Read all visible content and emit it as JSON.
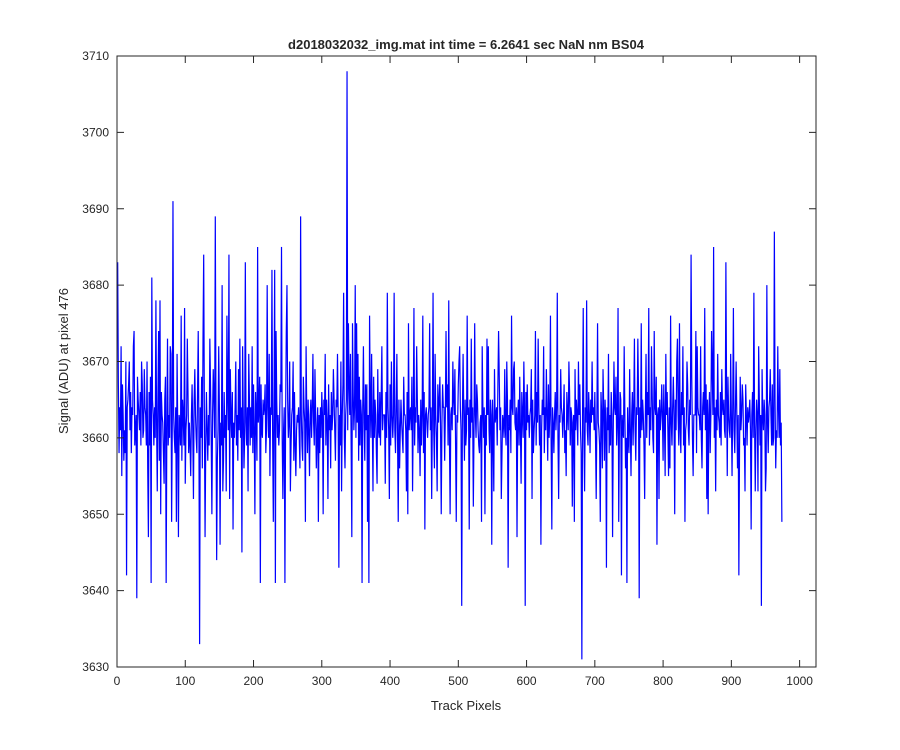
{
  "chart_data": {
    "type": "line",
    "title": "d2018032032_img.mat int time = 6.2641 sec  NaN nm BS04",
    "xlabel": "Track Pixels",
    "ylabel": "Signal (ADU) at pixel 476",
    "xlim": [
      0,
      1024
    ],
    "ylim": [
      3630,
      3710
    ],
    "xticks": [
      "0",
      "100",
      "200",
      "300",
      "400",
      "500",
      "600",
      "700",
      "800",
      "900",
      "1000"
    ],
    "yticks": [
      "3630",
      "3640",
      "3650",
      "3660",
      "3670",
      "3680",
      "3690",
      "3700",
      "3710"
    ],
    "grid": false,
    "legend": "none",
    "series": [
      {
        "color": "#0000ff",
        "x_start": 1,
        "x_step": 1,
        "values": [
          3683,
          3667,
          3658,
          3664,
          3661,
          3672,
          3655,
          3667,
          3663,
          3657,
          3661,
          3658,
          3670,
          3642,
          3664,
          3665,
          3667,
          3670,
          3661,
          3666,
          3658,
          3664,
          3663,
          3672,
          3674,
          3659,
          3661,
          3663,
          3639,
          3668,
          3665,
          3663,
          3661,
          3666,
          3659,
          3670,
          3667,
          3660,
          3661,
          3669,
          3664,
          3663,
          3659,
          3670,
          3656,
          3647,
          3666,
          3659,
          3668,
          3641,
          3681,
          3665,
          3663,
          3659,
          3664,
          3660,
          3678,
          3662,
          3653,
          3666,
          3674,
          3657,
          3678,
          3650,
          3666,
          3663,
          3662,
          3658,
          3654,
          3665,
          3668,
          3641,
          3661,
          3673,
          3659,
          3663,
          3660,
          3672,
          3671,
          3649,
          3662,
          3691,
          3663,
          3660,
          3658,
          3664,
          3649,
          3671,
          3661,
          3647,
          3663,
          3662,
          3659,
          3676,
          3657,
          3665,
          3663,
          3659,
          3677,
          3654,
          3661,
          3663,
          3673,
          3666,
          3658,
          3662,
          3659,
          3655,
          3663,
          3667,
          3661,
          3652,
          3665,
          3669,
          3663,
          3660,
          3658,
          3666,
          3674,
          3661,
          3633,
          3664,
          3660,
          3668,
          3656,
          3673,
          3684,
          3663,
          3647,
          3659,
          3666,
          3661,
          3657,
          3663,
          3659,
          3673,
          3667,
          3660,
          3650,
          3663,
          3669,
          3665,
          3660,
          3689,
          3663,
          3644,
          3657,
          3661,
          3672,
          3664,
          3646,
          3662,
          3659,
          3680,
          3653,
          3657,
          3666,
          3660,
          3663,
          3653,
          3676,
          3666,
          3661,
          3684,
          3652,
          3669,
          3663,
          3660,
          3666,
          3648,
          3662,
          3660,
          3664,
          3670,
          3659,
          3663,
          3657,
          3669,
          3661,
          3673,
          3660,
          3664,
          3645,
          3672,
          3663,
          3656,
          3660,
          3683,
          3662,
          3659,
          3664,
          3653,
          3671,
          3665,
          3659,
          3664,
          3660,
          3672,
          3658,
          3667,
          3661,
          3650,
          3666,
          3663,
          3657,
          3685,
          3662,
          3664,
          3668,
          3641,
          3667,
          3661,
          3660,
          3665,
          3663,
          3664,
          3667,
          3658,
          3661,
          3680,
          3664,
          3660,
          3671,
          3655,
          3664,
          3663,
          3682,
          3660,
          3649,
          3665,
          3682,
          3641,
          3674,
          3665,
          3660,
          3663,
          3659,
          3661,
          3667,
          3666,
          3685,
          3660,
          3652,
          3661,
          3664,
          3641,
          3663,
          3674,
          3680,
          3665,
          3660,
          3662,
          3670,
          3653,
          3659,
          3663,
          3664,
          3670,
          3657,
          3666,
          3659,
          3655,
          3661,
          3663,
          3662,
          3664,
          3660,
          3656,
          3689,
          3663,
          3659,
          3657,
          3668,
          3664,
          3662,
          3649,
          3672,
          3663,
          3658,
          3665,
          3661,
          3655,
          3663,
          3665,
          3660,
          3664,
          3671,
          3662,
          3659,
          3669,
          3663,
          3656,
          3661,
          3664,
          3649,
          3663,
          3658,
          3664,
          3660,
          3666,
          3663,
          3650,
          3665,
          3663,
          3671,
          3659,
          3665,
          3662,
          3652,
          3667,
          3661,
          3663,
          3656,
          3666,
          3661,
          3663,
          3669,
          3665,
          3661,
          3657,
          3665,
          3664,
          3671,
          3663,
          3643,
          3663,
          3659,
          3670,
          3653,
          3663,
          3667,
          3679,
          3660,
          3656,
          3663,
          3665,
          3708,
          3661,
          3675,
          3667,
          3663,
          3671,
          3659,
          3647,
          3675,
          3666,
          3661,
          3664,
          3680,
          3660,
          3675,
          3662,
          3671,
          3657,
          3668,
          3659,
          3665,
          3663,
          3641,
          3664,
          3672,
          3662,
          3657,
          3667,
          3661,
          3667,
          3649,
          3663,
          3641,
          3676,
          3665,
          3660,
          3671,
          3662,
          3653,
          3668,
          3660,
          3665,
          3663,
          3658,
          3654,
          3669,
          3661,
          3660,
          3666,
          3659,
          3665,
          3672,
          3661,
          3663,
          3663,
          3663,
          3654,
          3666,
          3660,
          3679,
          3664,
          3661,
          3652,
          3667,
          3659,
          3670,
          3663,
          3660,
          3663,
          3679,
          3661,
          3658,
          3664,
          3671,
          3660,
          3649,
          3665,
          3656,
          3661,
          3665,
          3662,
          3660,
          3658,
          3668,
          3663,
          3663,
          3661,
          3653,
          3666,
          3650,
          3675,
          3661,
          3663,
          3664,
          3661,
          3668,
          3653,
          3663,
          3677,
          3659,
          3664,
          3662,
          3672,
          3665,
          3658,
          3663,
          3661,
          3655,
          3665,
          3659,
          3663,
          3676,
          3658,
          3666,
          3648,
          3663,
          3664,
          3662,
          3660,
          3663,
          3664,
          3675,
          3661,
          3664,
          3652,
          3663,
          3679,
          3661,
          3656,
          3671,
          3663,
          3660,
          3653,
          3667,
          3662,
          3665,
          3668,
          3661,
          3650,
          3662,
          3667,
          3664,
          3664,
          3657,
          3663,
          3674,
          3664,
          3667,
          3659,
          3678,
          3660,
          3650,
          3663,
          3664,
          3661,
          3670,
          3665,
          3663,
          3669,
          3659,
          3649,
          3663,
          3662,
          3667,
          3670,
          3672,
          3664,
          3661,
          3638,
          3663,
          3671,
          3663,
          3657,
          3665,
          3659,
          3661,
          3676,
          3663,
          3664,
          3648,
          3665,
          3660,
          3673,
          3662,
          3664,
          3651,
          3661,
          3675,
          3663,
          3660,
          3667,
          3665,
          3661,
          3659,
          3658,
          3662,
          3663,
          3649,
          3672,
          3664,
          3660,
          3664,
          3650,
          3663,
          3659,
          3673,
          3663,
          3672,
          3661,
          3658,
          3665,
          3663,
          3646,
          3665,
          3661,
          3653,
          3669,
          3662,
          3663,
          3664,
          3659,
          3667,
          3674,
          3668,
          3661,
          3664,
          3652,
          3658,
          3663,
          3662,
          3660,
          3669,
          3661,
          3659,
          3670,
          3665,
          3643,
          3663,
          3661,
          3665,
          3658,
          3676,
          3664,
          3663,
          3669,
          3670,
          3662,
          3661,
          3664,
          3647,
          3663,
          3665,
          3659,
          3668,
          3661,
          3654,
          3666,
          3663,
          3660,
          3670,
          3664,
          3638,
          3666,
          3661,
          3667,
          3662,
          3663,
          3660,
          3663,
          3664,
          3669,
          3652,
          3665,
          3658,
          3661,
          3663,
          3674,
          3659,
          3666,
          3662,
          3673,
          3664,
          3659,
          3663,
          3646,
          3661,
          3665,
          3663,
          3672,
          3658,
          3664,
          3661,
          3669,
          3663,
          3657,
          3667,
          3660,
          3663,
          3676,
          3659,
          3648,
          3664,
          3662,
          3658,
          3663,
          3666,
          3661,
          3664,
          3679,
          3660,
          3652,
          3663,
          3662,
          3669,
          3664,
          3663,
          3660,
          3663,
          3667,
          3658,
          3661,
          3655,
          3666,
          3663,
          3661,
          3670,
          3666,
          3659,
          3664,
          3663,
          3651,
          3662,
          3663,
          3649,
          3669,
          3661,
          3665,
          3663,
          3659,
          3670,
          3663,
          3667,
          3661,
          3658,
          3631,
          3663,
          3677,
          3660,
          3653,
          3664,
          3662,
          3678,
          3661,
          3659,
          3666,
          3663,
          3658,
          3665,
          3662,
          3670,
          3663,
          3664,
          3661,
          3666,
          3660,
          3652,
          3663,
          3675,
          3662,
          3661,
          3659,
          3649,
          3666,
          3663,
          3656,
          3669,
          3664,
          3657,
          3665,
          3662,
          3643,
          3664,
          3661,
          3671,
          3658,
          3663,
          3659,
          3666,
          3663,
          3647,
          3661,
          3670,
          3664,
          3663,
          3668,
          3659,
          3662,
          3677,
          3649,
          3661,
          3666,
          3665,
          3642,
          3663,
          3661,
          3660,
          3672,
          3663,
          3656,
          3660,
          3641,
          3664,
          3660,
          3658,
          3669,
          3661,
          3655,
          3663,
          3666,
          3659,
          3664,
          3673,
          3661,
          3657,
          3664,
          3663,
          3673,
          3666,
          3639,
          3664,
          3660,
          3675,
          3661,
          3665,
          3663,
          3659,
          3652,
          3663,
          3671,
          3660,
          3666,
          3663,
          3677,
          3659,
          3664,
          3661,
          3672,
          3666,
          3660,
          3658,
          3674,
          3664,
          3663,
          3668,
          3646,
          3663,
          3664,
          3652,
          3665,
          3661,
          3663,
          3667,
          3663,
          3657,
          3667,
          3662,
          3655,
          3671,
          3663,
          3666,
          3661,
          3655,
          3664,
          3656,
          3676,
          3662,
          3659,
          3664,
          3668,
          3663,
          3650,
          3665,
          3661,
          3670,
          3673,
          3663,
          3659,
          3675,
          3661,
          3658,
          3666,
          3663,
          3672,
          3659,
          3664,
          3649,
          3661,
          3662,
          3670,
          3667,
          3661,
          3659,
          3665,
          3663,
          3684,
          3668,
          3660,
          3655,
          3663,
          3663,
          3663,
          3674,
          3658,
          3672,
          3664,
          3663,
          3663,
          3661,
          3672,
          3660,
          3656,
          3664,
          3666,
          3663,
          3677,
          3661,
          3667,
          3652,
          3665,
          3650,
          3663,
          3666,
          3658,
          3663,
          3674,
          3669,
          3663,
          3685,
          3660,
          3664,
          3653,
          3665,
          3661,
          3671,
          3663,
          3662,
          3660,
          3666,
          3659,
          3669,
          3664,
          3663,
          3665,
          3661,
          3660,
          3683,
          3666,
          3655,
          3668,
          3663,
          3661,
          3660,
          3671,
          3663,
          3655,
          3664,
          3677,
          3661,
          3658,
          3664,
          3670,
          3663,
          3656,
          3663,
          3642,
          3659,
          3668,
          3661,
          3663,
          3667,
          3665,
          3659,
          3660,
          3653,
          3667,
          3663,
          3659,
          3664,
          3662,
          3663,
          3665,
          3661,
          3648,
          3663,
          3666,
          3660,
          3679,
          3662,
          3653,
          3661,
          3665,
          3663,
          3653,
          3672,
          3665,
          3659,
          3663,
          3638,
          3669,
          3663,
          3661,
          3665,
          3663,
          3653,
          3656,
          3680,
          3662,
          3658,
          3664,
          3665,
          3669,
          3663,
          3659,
          3667,
          3659,
          3660,
          3687,
          3665,
          3656,
          3661,
          3660,
          3672,
          3664,
          3660,
          3669,
          3659,
          3662,
          3649
        ]
      }
    ]
  }
}
